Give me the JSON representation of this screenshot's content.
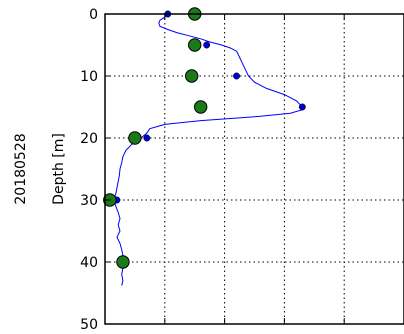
{
  "chart_data": {
    "type": "scatter",
    "sample_label": "20180528",
    "ylabel": "Depth [m]",
    "ylim": [
      50,
      0
    ],
    "yticks": [
      0,
      10,
      20,
      30,
      40,
      50
    ],
    "xlim": [
      0,
      5
    ],
    "grid": true,
    "profile_line": {
      "color": "#0000ff",
      "points": [
        [
          1.05,
          0.0
        ],
        [
          1.0,
          0.5
        ],
        [
          0.92,
          1.0
        ],
        [
          0.9,
          1.5
        ],
        [
          0.92,
          2.0
        ],
        [
          1.05,
          2.5
        ],
        [
          1.2,
          3.0
        ],
        [
          1.4,
          3.5
        ],
        [
          1.6,
          4.0
        ],
        [
          1.75,
          4.5
        ],
        [
          1.95,
          5.0
        ],
        [
          2.1,
          5.5
        ],
        [
          2.2,
          6.0
        ],
        [
          2.25,
          7.0
        ],
        [
          2.3,
          8.0
        ],
        [
          2.35,
          9.0
        ],
        [
          2.4,
          10.0
        ],
        [
          2.5,
          11.0
        ],
        [
          2.7,
          12.0
        ],
        [
          3.0,
          13.0
        ],
        [
          3.2,
          14.0
        ],
        [
          3.3,
          15.0
        ],
        [
          3.28,
          15.5
        ],
        [
          3.1,
          16.0
        ],
        [
          2.6,
          16.5
        ],
        [
          1.6,
          17.2
        ],
        [
          1.0,
          17.8
        ],
        [
          0.75,
          18.5
        ],
        [
          0.7,
          19.2
        ],
        [
          0.6,
          20.0
        ],
        [
          0.45,
          21.0
        ],
        [
          0.35,
          22.0
        ],
        [
          0.3,
          23.0
        ],
        [
          0.28,
          24.0
        ],
        [
          0.25,
          25.0
        ],
        [
          0.24,
          26.0
        ],
        [
          0.22,
          27.0
        ],
        [
          0.2,
          28.0
        ],
        [
          0.18,
          29.0
        ],
        [
          0.15,
          30.0
        ],
        [
          0.18,
          31.0
        ],
        [
          0.22,
          32.0
        ],
        [
          0.25,
          33.0
        ],
        [
          0.22,
          34.0
        ],
        [
          0.25,
          35.0
        ],
        [
          0.2,
          36.0
        ],
        [
          0.25,
          37.0
        ],
        [
          0.28,
          38.0
        ],
        [
          0.3,
          39.0
        ],
        [
          0.28,
          40.0
        ],
        [
          0.3,
          41.0
        ],
        [
          0.28,
          42.0
        ],
        [
          0.3,
          43.0
        ],
        [
          0.28,
          43.8
        ]
      ]
    },
    "profile_points": {
      "color": "#0000cc",
      "points": [
        [
          1.05,
          0.0
        ],
        [
          1.7,
          5.0
        ],
        [
          2.2,
          10.0
        ],
        [
          3.3,
          15.0
        ],
        [
          0.7,
          20.0
        ],
        [
          0.2,
          30.0
        ]
      ]
    },
    "samples": {
      "color": "#1a7a1a",
      "points": [
        [
          1.5,
          0.0
        ],
        [
          1.5,
          5.0
        ],
        [
          1.45,
          10.0
        ],
        [
          1.6,
          15.0
        ],
        [
          0.5,
          20.0
        ],
        [
          0.08,
          30.0
        ],
        [
          0.3,
          40.0
        ]
      ]
    }
  }
}
